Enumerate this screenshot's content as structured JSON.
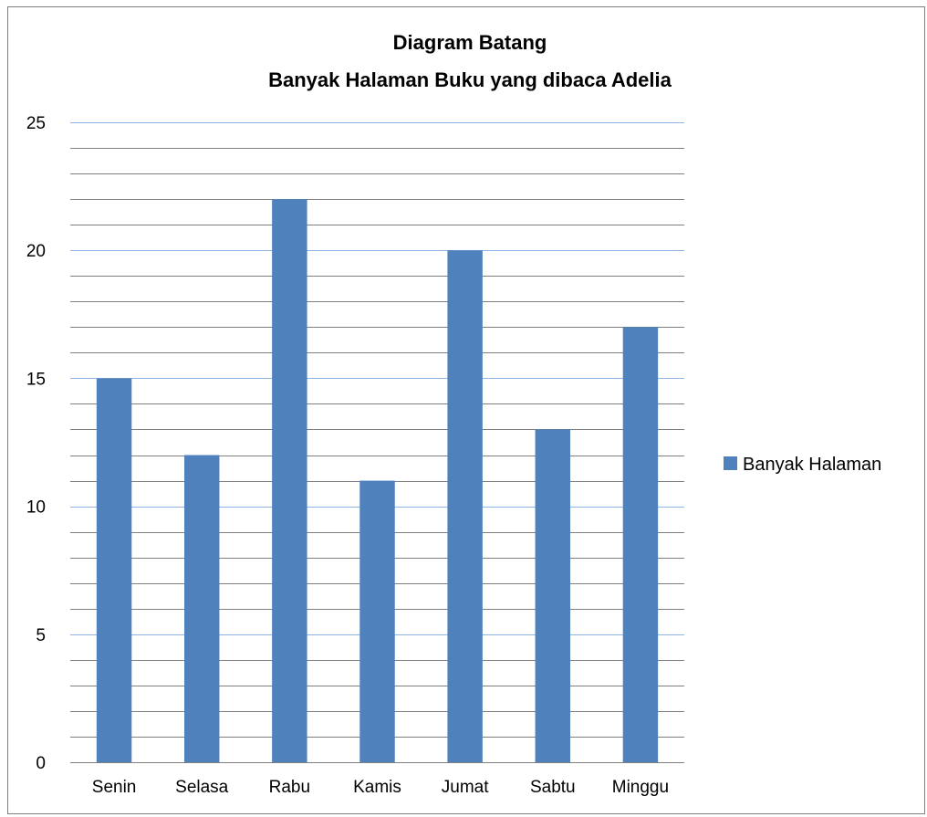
{
  "chart_data": {
    "type": "bar",
    "title": "Diagram Batang",
    "subtitle": "Banyak Halaman Buku yang dibaca Adelia",
    "categories": [
      "Senin",
      "Selasa",
      "Rabu",
      "Kamis",
      "Jumat",
      "Sabtu",
      "Minggu"
    ],
    "series": [
      {
        "name": "Banyak Halaman",
        "values": [
          15,
          12,
          22,
          11,
          20,
          13,
          17
        ],
        "color": "#4f81bd"
      }
    ],
    "xlabel": "",
    "ylabel": "",
    "ylim": [
      0,
      25
    ],
    "yticks": [
      "0",
      "5",
      "10",
      "15",
      "20",
      "25"
    ],
    "major_step": 5,
    "minor_step": 1,
    "grid": true,
    "major_grid_color": "#8eb4e3",
    "minor_grid_color": "#7f7f7f",
    "legend_position": "right"
  }
}
